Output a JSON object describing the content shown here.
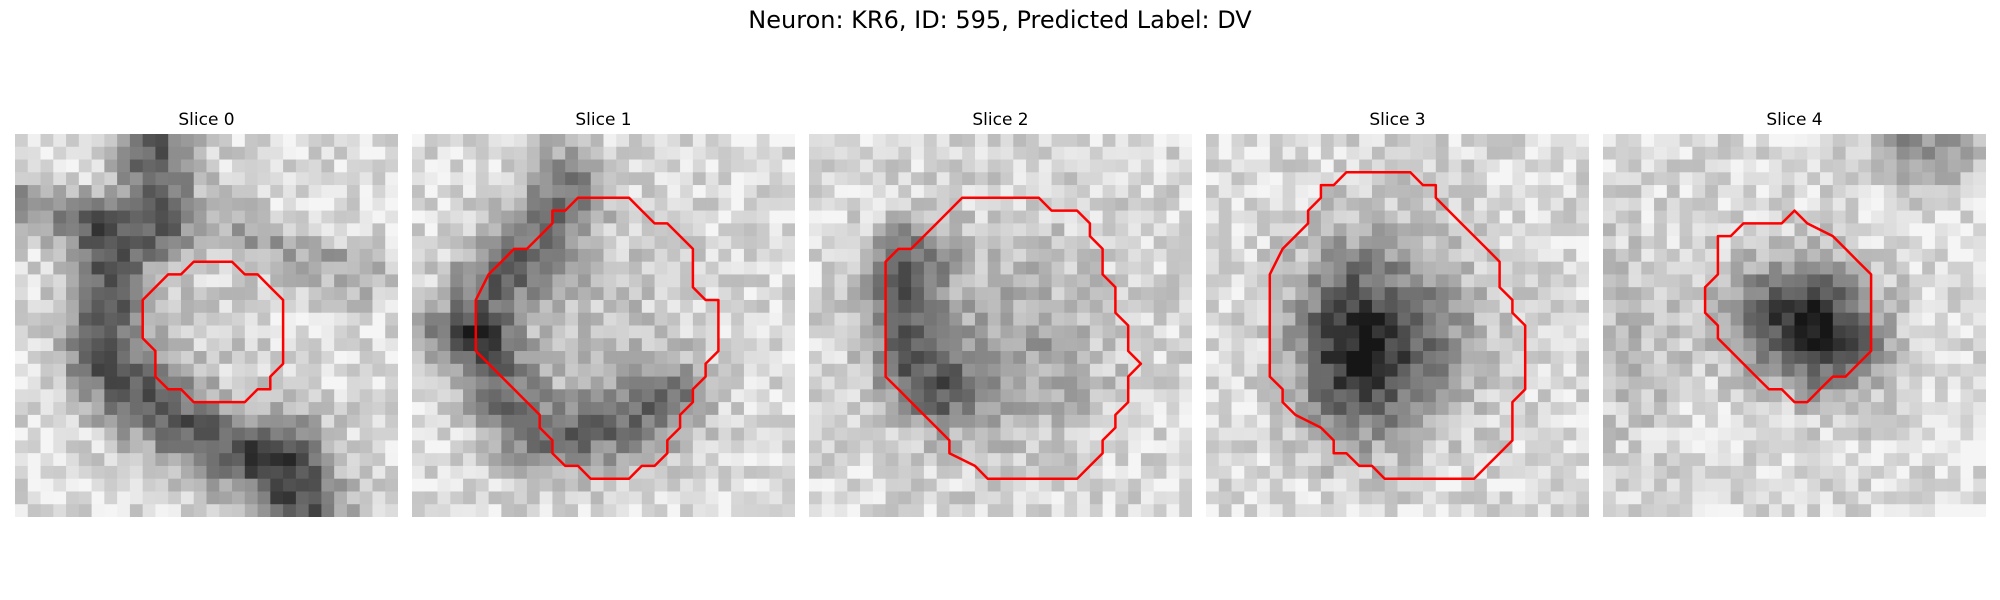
{
  "figure": {
    "title": "Neuron: KR6, ID: 595, Predicted Label: DV"
  },
  "panels": [
    {
      "title": "Slice 0"
    },
    {
      "title": "Slice 1"
    },
    {
      "title": "Slice 2"
    },
    {
      "title": "Slice 3"
    },
    {
      "title": "Slice 4"
    }
  ],
  "colors": {
    "contour": "#ff0000",
    "background": "#ffffff"
  }
}
